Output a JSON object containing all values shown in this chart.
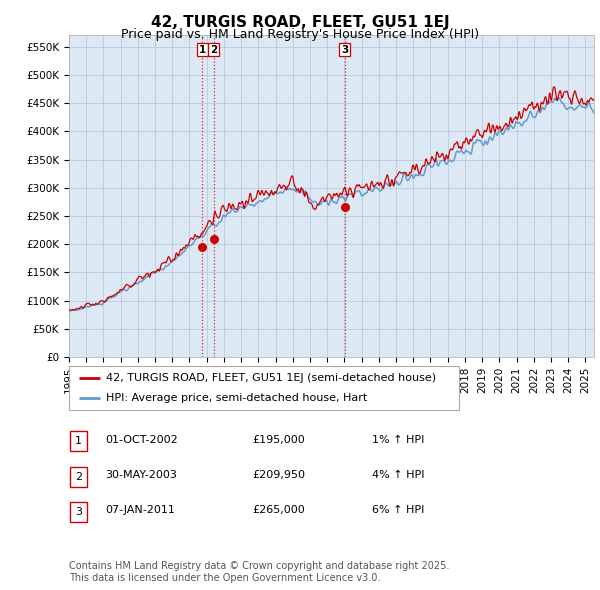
{
  "title": "42, TURGIS ROAD, FLEET, GU51 1EJ",
  "subtitle": "Price paid vs. HM Land Registry's House Price Index (HPI)",
  "ylabel_vals": [
    "£0",
    "£50K",
    "£100K",
    "£150K",
    "£200K",
    "£250K",
    "£300K",
    "£350K",
    "£400K",
    "£450K",
    "£500K",
    "£550K"
  ],
  "yticks": [
    0,
    50000,
    100000,
    150000,
    200000,
    250000,
    300000,
    350000,
    400000,
    450000,
    500000,
    550000
  ],
  "ylim": [
    0,
    570000
  ],
  "xlim_start": 1995.0,
  "xlim_end": 2025.5,
  "sale1_x": 2002.75,
  "sale1_y": 195000,
  "sale2_x": 2003.42,
  "sale2_y": 209950,
  "sale3_x": 2011.03,
  "sale3_y": 265000,
  "legend_line1": "42, TURGIS ROAD, FLEET, GU51 1EJ (semi-detached house)",
  "legend_line2": "HPI: Average price, semi-detached house, Hart",
  "table_rows": [
    [
      "1",
      "01-OCT-2002",
      "£195,000",
      "1% ↑ HPI"
    ],
    [
      "2",
      "30-MAY-2003",
      "£209,950",
      "4% ↑ HPI"
    ],
    [
      "3",
      "07-JAN-2011",
      "£265,000",
      "6% ↑ HPI"
    ]
  ],
  "footnote": "Contains HM Land Registry data © Crown copyright and database right 2025.\nThis data is licensed under the Open Government Licence v3.0.",
  "line_red_color": "#cc0000",
  "line_blue_color": "#6699cc",
  "background_color": "#dce9f5",
  "grid_color": "#b0c4d8",
  "vline_color": "#dd0000",
  "box_border_color": "#cc0000",
  "title_fontsize": 11,
  "subtitle_fontsize": 9,
  "tick_fontsize": 7.5,
  "legend_fontsize": 8,
  "table_fontsize": 8,
  "footnote_fontsize": 7
}
